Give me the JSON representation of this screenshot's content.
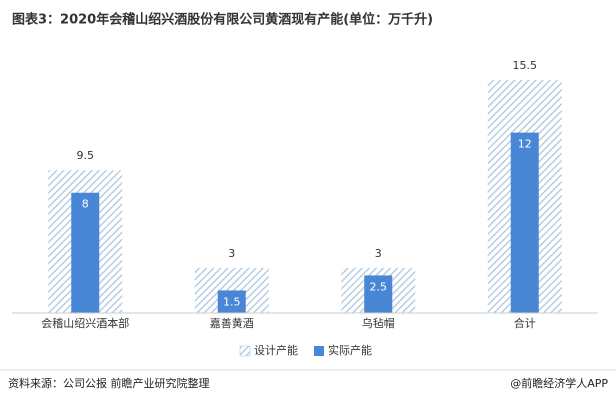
{
  "chart_data": {
    "type": "bar",
    "title": "图表3：2020年会稽山绍兴酒股份有限公司黄酒现有产能(单位：万千升)",
    "categories": [
      "会稽山绍兴酒本部",
      "嘉善黄酒",
      "乌毡帽",
      "合计"
    ],
    "series": [
      {
        "name": "设计产能",
        "color": "#a8c3db",
        "values": [
          9.5,
          3,
          3,
          15.5
        ]
      },
      {
        "name": "实际产能",
        "color": "#4a86d6",
        "values": [
          8,
          1.5,
          2.5,
          12
        ]
      }
    ],
    "legend": "bottom",
    "source": "资料来源：公司公报 前瞻产业研究院整理",
    "credit": "@前瞻经济学人APP"
  }
}
